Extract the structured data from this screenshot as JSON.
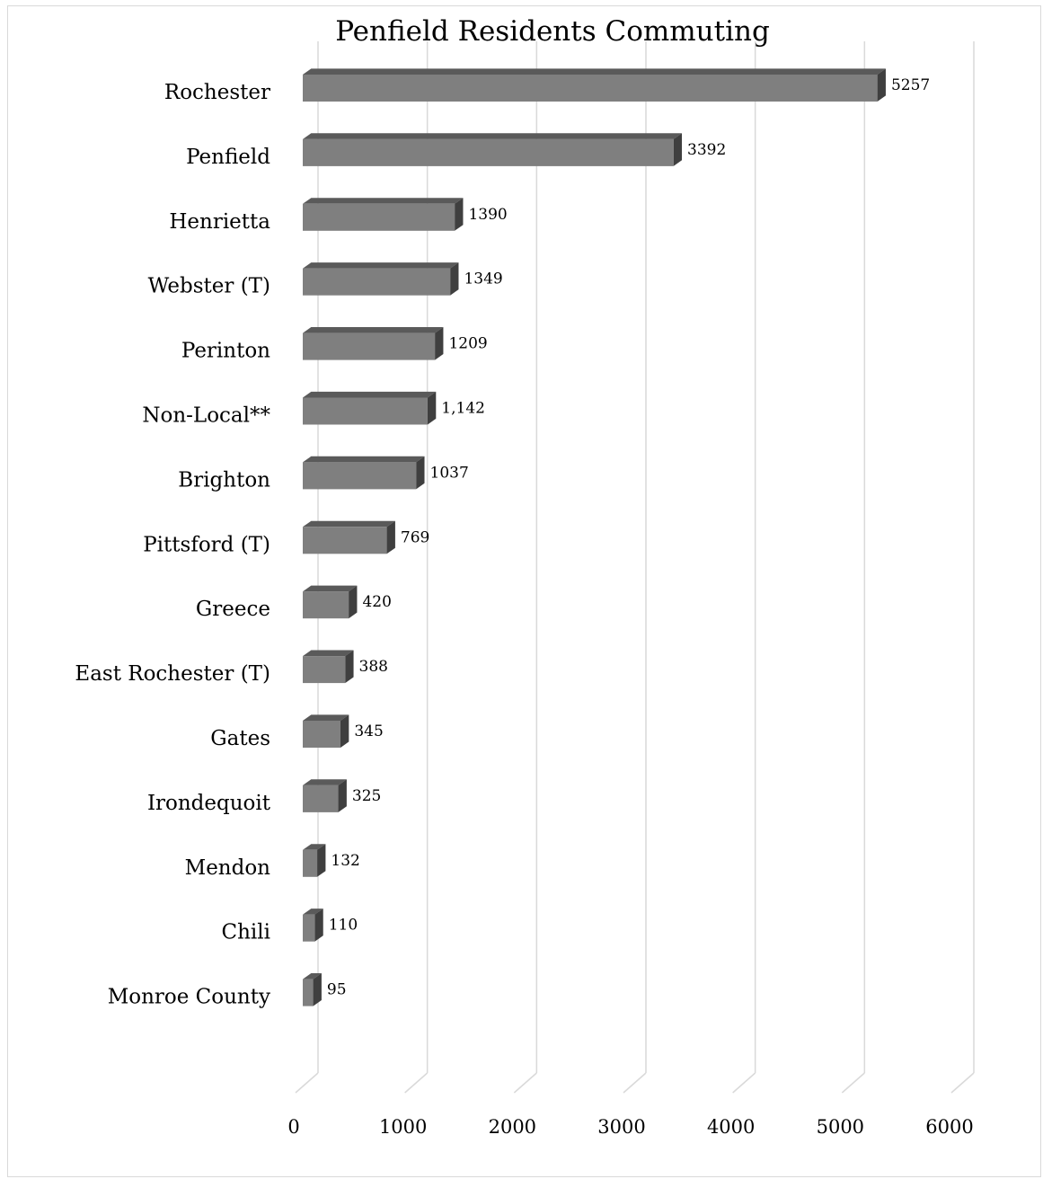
{
  "chart_data": {
    "type": "bar",
    "orientation": "horizontal",
    "style": "3d",
    "title": "Penfield Residents Commuting",
    "xlabel": "",
    "ylabel": "",
    "categories": [
      "Rochester",
      "Penfield",
      "Henrietta",
      "Webster (T)",
      "Perinton",
      "Non-Local**",
      "Brighton",
      "Pittsford (T)",
      "Greece",
      "East Rochester (T)",
      "Gates",
      "Irondequoit",
      "Mendon",
      "Chili",
      "Monroe County"
    ],
    "values": [
      5257,
      3392,
      1390,
      1349,
      1209,
      1142,
      1037,
      769,
      420,
      388,
      345,
      325,
      132,
      110,
      95
    ],
    "data_labels": [
      "5257",
      "3392",
      "1390",
      "1349",
      "1209",
      "1,142",
      "1037",
      "769",
      "420",
      "388",
      "345",
      "325",
      "132",
      "110",
      "95"
    ],
    "xlim": [
      0,
      6000
    ],
    "xticks": [
      0,
      1000,
      2000,
      3000,
      4000,
      5000,
      6000
    ],
    "xtick_labels": [
      "0",
      "1000",
      "2000",
      "3000",
      "4000",
      "5000",
      "6000"
    ],
    "grid": true,
    "legend": "none",
    "colors": {
      "bar_front": "#7f7f7f",
      "bar_top": "#5a5a5a",
      "bar_side": "#3f3f3f",
      "gridline": "#d9d9d9"
    }
  }
}
